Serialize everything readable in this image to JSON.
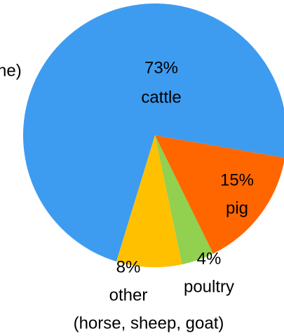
{
  "chart_data": {
    "type": "pie",
    "title": "ne)",
    "categories": [
      "cattle",
      "pig",
      "poultry",
      "other"
    ],
    "values": [
      73,
      15,
      4,
      8
    ],
    "value_labels": [
      "73%",
      "15%",
      "4%",
      "8%"
    ],
    "colors": [
      "#3d9cf0",
      "#ff6600",
      "#92d050",
      "#ffc000"
    ],
    "annotation": "(horse, sheep, goat)"
  }
}
